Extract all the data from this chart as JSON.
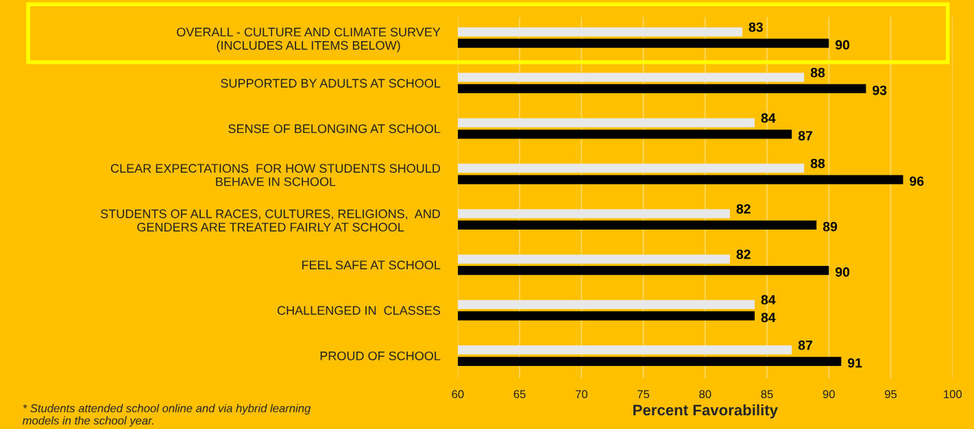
{
  "chart_data": {
    "type": "bar",
    "orientation": "horizontal",
    "categories": [
      "OVERALL - CULTURE AND CLIMATE SURVEY\n(INCLUDES ALL ITEMS BELOW)",
      "SUPPORTED BY ADULTS AT SCHOOL",
      "SENSE OF BELONGING AT SCHOOL",
      "CLEAR EXPECTATIONS  FOR HOW STUDENTS SHOULD\nBEHAVE IN SCHOOL",
      "STUDENTS OF ALL RACES, CULTURES, RELIGIONS,  AND\nGENDERS ARE TREATED FAIRLY AT SCHOOL",
      "FEEL SAFE AT SCHOOL",
      "CHALLENGED IN  CLASSES",
      "PROUD OF SCHOOL"
    ],
    "series": [
      {
        "color": "#e8e8e8",
        "values": [
          83,
          88,
          84,
          88,
          82,
          82,
          84,
          87
        ]
      },
      {
        "color": "#000000",
        "values": [
          90,
          93,
          87,
          96,
          89,
          90,
          84,
          91
        ]
      }
    ],
    "xlim": [
      60,
      100
    ],
    "xticks": [
      60,
      65,
      70,
      75,
      80,
      85,
      90,
      95,
      100
    ],
    "xlabel": "Percent Favorability",
    "grid": "x",
    "legend": false,
    "data_labels": true,
    "annotations": [
      "* Students attended school online and via hybrid learning\nmodels in the school year."
    ]
  }
}
